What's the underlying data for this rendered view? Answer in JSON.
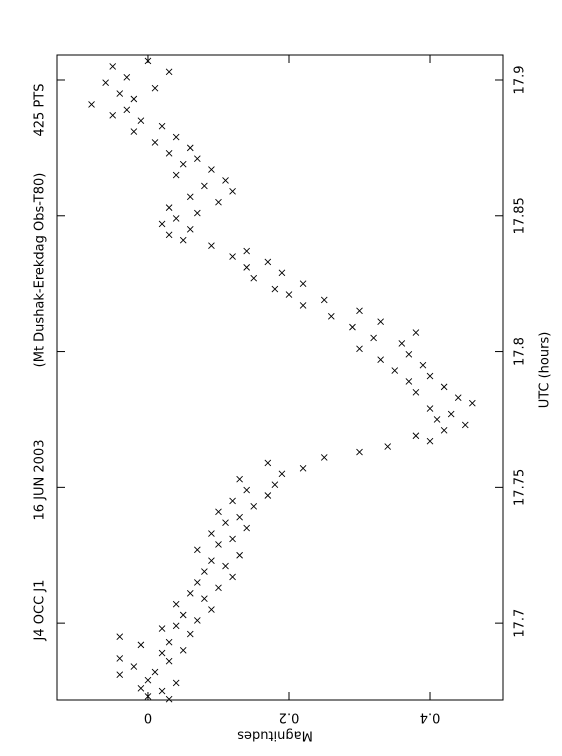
{
  "chart_data": {
    "type": "scatter",
    "title": "J4 OCC J1",
    "subtitle": "16 JUN 2003",
    "observatory": "(Mt Dushak-Erekdag Obs-T80)",
    "points_label": "425 PTS",
    "x_label": "UTC (hours)",
    "y_label": "Magnitudes",
    "xlim": [
      17.6717,
      17.9092
    ],
    "xticks": [
      17.7,
      17.75,
      17.8,
      17.85,
      17.9
    ],
    "ylim": [
      -0.129,
      0.5035
    ],
    "yticks": [
      0,
      0.2,
      0.4
    ],
    "color": "#000000",
    "x": [
      17.672,
      17.673,
      17.675,
      17.676,
      17.678,
      17.679,
      17.681,
      17.682,
      17.684,
      17.686,
      17.687,
      17.689,
      17.69,
      17.692,
      17.693,
      17.695,
      17.696,
      17.698,
      17.699,
      17.701,
      17.703,
      17.705,
      17.707,
      17.709,
      17.711,
      17.713,
      17.715,
      17.717,
      17.719,
      17.721,
      17.723,
      17.725,
      17.727,
      17.729,
      17.731,
      17.733,
      17.735,
      17.737,
      17.739,
      17.741,
      17.743,
      17.745,
      17.747,
      17.749,
      17.751,
      17.753,
      17.755,
      17.757,
      17.759,
      17.761,
      17.763,
      17.765,
      17.767,
      17.769,
      17.771,
      17.773,
      17.775,
      17.777,
      17.779,
      17.781,
      17.783,
      17.785,
      17.787,
      17.789,
      17.791,
      17.793,
      17.795,
      17.797,
      17.799,
      17.801,
      17.803,
      17.805,
      17.807,
      17.809,
      17.811,
      17.813,
      17.815,
      17.817,
      17.819,
      17.821,
      17.823,
      17.825,
      17.827,
      17.829,
      17.831,
      17.833,
      17.835,
      17.837,
      17.839,
      17.841,
      17.843,
      17.845,
      17.847,
      17.849,
      17.851,
      17.853,
      17.855,
      17.857,
      17.859,
      17.861,
      17.863,
      17.865,
      17.867,
      17.869,
      17.871,
      17.873,
      17.875,
      17.877,
      17.879,
      17.881,
      17.883,
      17.885,
      17.887,
      17.889,
      17.891,
      17.893,
      17.895,
      17.897,
      17.899,
      17.901,
      17.903,
      17.905,
      17.907
    ],
    "values": [
      0.03,
      0.0,
      0.02,
      -0.01,
      0.04,
      0.0,
      -0.04,
      0.01,
      -0.02,
      0.03,
      -0.04,
      0.02,
      0.05,
      -0.01,
      0.03,
      -0.04,
      0.06,
      0.02,
      0.04,
      0.07,
      0.05,
      0.09,
      0.04,
      0.08,
      0.06,
      0.1,
      0.07,
      0.12,
      0.08,
      0.11,
      0.09,
      0.13,
      0.07,
      0.1,
      0.12,
      0.09,
      0.14,
      0.11,
      0.13,
      0.1,
      0.15,
      0.12,
      0.17,
      0.14,
      0.18,
      0.13,
      0.19,
      0.22,
      0.17,
      0.25,
      0.3,
      0.34,
      0.4,
      0.38,
      0.42,
      0.45,
      0.41,
      0.43,
      0.4,
      0.46,
      0.44,
      0.38,
      0.42,
      0.37,
      0.4,
      0.35,
      0.39,
      0.33,
      0.37,
      0.3,
      0.36,
      0.32,
      0.38,
      0.29,
      0.33,
      0.26,
      0.3,
      0.22,
      0.25,
      0.2,
      0.18,
      0.22,
      0.15,
      0.19,
      0.14,
      0.17,
      0.12,
      0.14,
      0.09,
      0.05,
      0.03,
      0.06,
      0.02,
      0.04,
      0.07,
      0.03,
      0.1,
      0.06,
      0.12,
      0.08,
      0.11,
      0.04,
      0.09,
      0.05,
      0.07,
      0.03,
      0.06,
      0.01,
      0.04,
      -0.02,
      0.02,
      -0.01,
      -0.05,
      -0.03,
      -0.08,
      -0.02,
      -0.04,
      0.01,
      -0.06,
      -0.03,
      0.03,
      -0.05,
      0.0
    ]
  }
}
